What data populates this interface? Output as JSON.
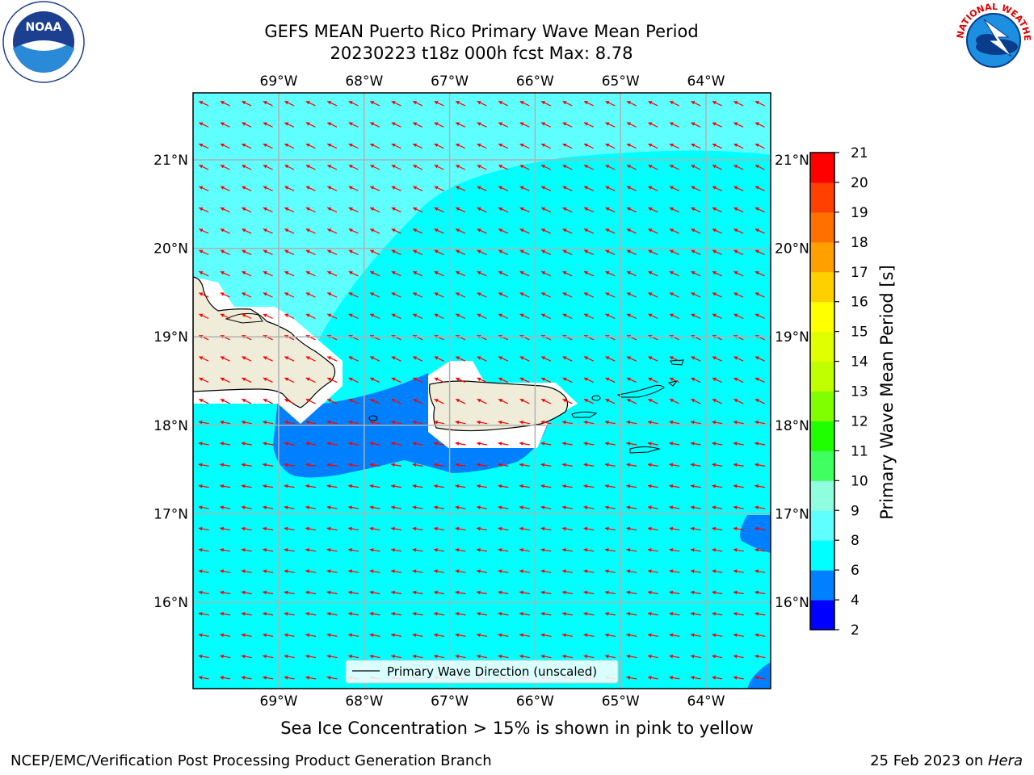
{
  "header": {
    "title_line1": "GEFS MEAN Puerto Rico Primary Wave Mean Period",
    "title_line2": "20230223 t18z 000h fcst   Max: 8.78"
  },
  "logos": {
    "left": {
      "icon": "noaa-logo",
      "text": "NOAA"
    },
    "right": {
      "icon": "nws-logo",
      "text": "NATIONAL WEATHER SERVICE"
    }
  },
  "map": {
    "lon_labels": [
      "69°W",
      "68°W",
      "67°W",
      "66°W",
      "65°W",
      "64°W"
    ],
    "lat_labels": [
      "21°N",
      "20°N",
      "19°N",
      "18°N",
      "17°N",
      "16°N"
    ],
    "land_color": "#efedda",
    "ocean_color": "#00ffff",
    "arrow_color": "#ff0000",
    "legend_label": "Primary Wave Direction (unscaled)"
  },
  "colorbar": {
    "label": "Primary Wave Mean Period [s]",
    "ticks": [
      "2",
      "4",
      "6",
      "8",
      "9",
      "10",
      "11",
      "12",
      "13",
      "14",
      "15",
      "16",
      "17",
      "18",
      "19",
      "20",
      "21"
    ],
    "colors": [
      "#0000ff",
      "#0080ff",
      "#00ffff",
      "#60ffff",
      "#90ffe0",
      "#40ff60",
      "#20ff00",
      "#80ff00",
      "#c0ff00",
      "#e0ff00",
      "#ffff00",
      "#ffd000",
      "#ffa000",
      "#ff7000",
      "#ff4000",
      "#ff0000"
    ]
  },
  "caption": "Sea Ice Concentration > 15% is shown in pink to yellow",
  "footer": {
    "left": "NCEP/EMC/Verification Post Processing Product Generation Branch",
    "right_prefix": "25 Feb 2023 on ",
    "right_host": "Hera"
  }
}
